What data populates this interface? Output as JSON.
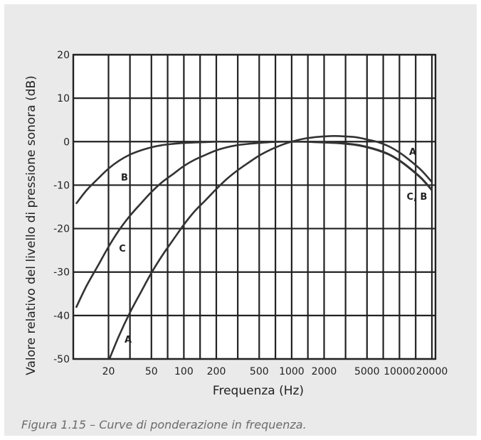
{
  "chart_data": {
    "type": "line",
    "title": "",
    "xlabel": "Frequenza (Hz)",
    "ylabel": "Valore relativo del livello di pressione sonora (dB)",
    "x_scale": "log",
    "xlim": [
      10,
      20000
    ],
    "ylim": [
      -50,
      20
    ],
    "x_tick_values": [
      20,
      50,
      100,
      200,
      500,
      1000,
      2000,
      5000,
      10000,
      20000
    ],
    "x_tick_labels": [
      "20",
      "50",
      "100",
      "200",
      "500",
      "1000",
      "2000",
      "5000",
      "10000",
      "20000"
    ],
    "y_ticks": [
      20,
      10,
      0,
      -10,
      -20,
      -30,
      -40,
      -50
    ],
    "grid": true,
    "series": [
      {
        "name": "A",
        "x": [
          20,
          25,
          31.5,
          40,
          50,
          63,
          80,
          100,
          125,
          160,
          200,
          250,
          315,
          400,
          500,
          630,
          800,
          1000,
          1250,
          1600,
          2000,
          2500,
          3150,
          4000,
          5000,
          6300,
          8000,
          10000,
          12500,
          16000,
          20000
        ],
        "values": [
          -50.5,
          -44.7,
          -39.4,
          -34.6,
          -30.2,
          -26.2,
          -22.5,
          -19.1,
          -16.1,
          -13.4,
          -10.9,
          -8.6,
          -6.6,
          -4.8,
          -3.2,
          -1.9,
          -0.8,
          0,
          0.6,
          1.0,
          1.2,
          1.3,
          1.2,
          1.0,
          0.5,
          -0.1,
          -1.1,
          -2.5,
          -4.3,
          -6.6,
          -9.3
        ]
      },
      {
        "name": "B",
        "x": [
          10,
          12.5,
          16,
          20,
          25,
          31.5,
          40,
          50,
          63,
          80,
          100,
          125,
          160,
          200,
          250,
          315,
          400,
          500,
          630,
          800,
          1000,
          1250,
          1600,
          2000,
          2500,
          3150,
          4000,
          5000,
          6300,
          8000,
          10000,
          12500,
          16000,
          20000
        ],
        "values": [
          -38.2,
          -33.2,
          -28.5,
          -24.2,
          -20.4,
          -17.1,
          -14.2,
          -11.6,
          -9.3,
          -7.4,
          -5.6,
          -4.2,
          -3.0,
          -2.0,
          -1.3,
          -0.8,
          -0.5,
          -0.3,
          -0.1,
          0,
          0,
          0,
          0,
          -0.1,
          -0.2,
          -0.4,
          -0.7,
          -1.2,
          -1.9,
          -2.9,
          -4.3,
          -6.1,
          -8.4,
          -11.1
        ]
      },
      {
        "name": "C",
        "x": [
          10,
          12.5,
          16,
          20,
          25,
          31.5,
          40,
          50,
          63,
          80,
          100,
          125,
          160,
          200,
          250,
          315,
          400,
          500,
          630,
          800,
          1000,
          1250,
          1600,
          2000,
          2500,
          3150,
          4000,
          5000,
          6300,
          8000,
          10000,
          12500,
          16000,
          20000
        ],
        "values": [
          -14.3,
          -11.2,
          -8.5,
          -6.2,
          -4.4,
          -3.0,
          -2.0,
          -1.3,
          -0.8,
          -0.5,
          -0.3,
          -0.2,
          -0.1,
          0,
          0,
          0,
          0,
          0,
          0,
          0,
          0,
          0,
          -0.1,
          -0.2,
          -0.3,
          -0.5,
          -0.8,
          -1.3,
          -2.0,
          -3.0,
          -4.4,
          -6.2,
          -8.5,
          -11.2
        ]
      }
    ],
    "curve_labels": [
      "A",
      "B",
      "C",
      "A",
      "C, B"
    ]
  },
  "caption": "Figura 1.15 – Curve di ponderazione in frequenza."
}
